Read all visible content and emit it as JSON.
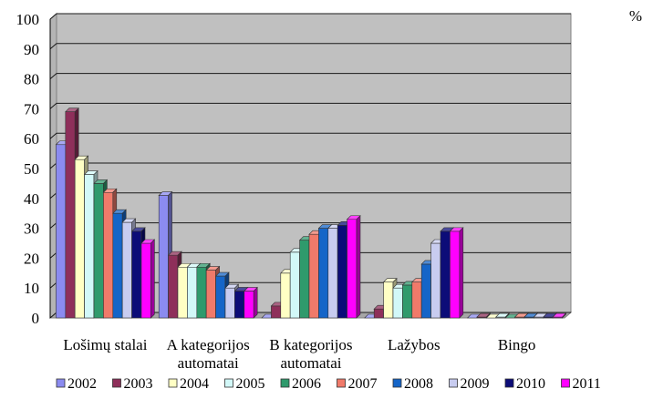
{
  "chart_data": {
    "type": "bar",
    "unit_label": "%",
    "ylim": [
      0,
      100
    ],
    "yticks": [
      "0",
      "10",
      "20",
      "30",
      "40",
      "50",
      "60",
      "70",
      "80",
      "90",
      "100"
    ],
    "grid": true,
    "legend_position": "bottom",
    "categories": [
      [
        "Lošimų stalai"
      ],
      [
        "A kategorijos",
        "automatai"
      ],
      [
        "B kategorijos",
        "automatai"
      ],
      [
        "Lažybos"
      ],
      [
        "Bingo"
      ]
    ],
    "series": [
      {
        "name": "2002",
        "color": "#8b8bf0",
        "values": [
          58,
          41,
          0,
          0,
          0
        ]
      },
      {
        "name": "2003",
        "color": "#8e2f5a",
        "values": [
          69,
          21,
          4,
          3,
          0.3
        ]
      },
      {
        "name": "2004",
        "color": "#ffffc4",
        "values": [
          53,
          17,
          15,
          12,
          0
        ]
      },
      {
        "name": "2005",
        "color": "#d2f8f8",
        "values": [
          48,
          17,
          22,
          10,
          0.3
        ]
      },
      {
        "name": "2006",
        "color": "#2f9a6c",
        "values": [
          45,
          17,
          26,
          11,
          0
        ]
      },
      {
        "name": "2007",
        "color": "#f07a6a",
        "values": [
          42,
          16,
          28,
          12,
          0.3
        ]
      },
      {
        "name": "2008",
        "color": "#1565c8",
        "values": [
          35,
          14,
          30,
          18,
          0.3
        ]
      },
      {
        "name": "2009",
        "color": "#c8ccf0",
        "values": [
          32,
          10,
          30,
          25,
          0.3
        ]
      },
      {
        "name": "2010",
        "color": "#0c0c78",
        "values": [
          29,
          9,
          31,
          29,
          0.3
        ]
      },
      {
        "name": "2011",
        "color": "#ff00ff",
        "values": [
          25,
          9,
          33,
          29,
          0.3
        ]
      }
    ]
  }
}
